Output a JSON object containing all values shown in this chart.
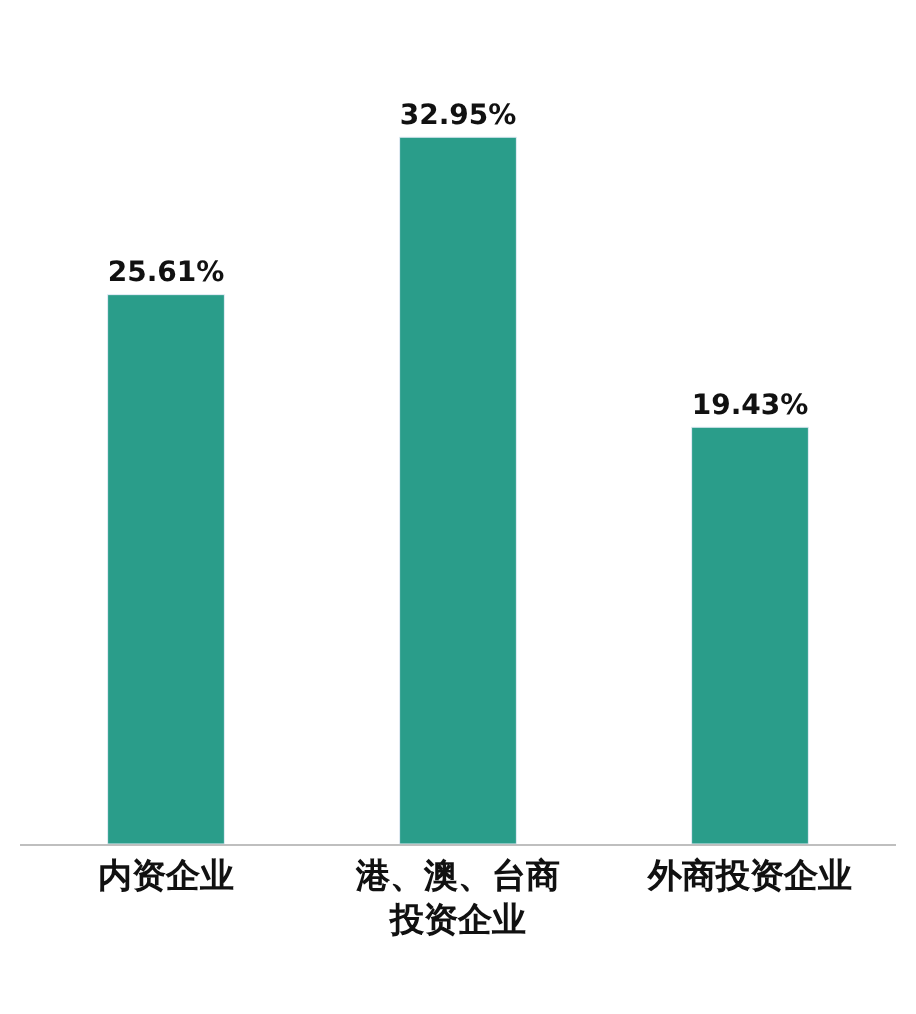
{
  "chart_data": {
    "type": "bar",
    "categories": [
      "内资企业",
      "港、澳、台商投资企业",
      "外商投资企业"
    ],
    "values": [
      25.61,
      32.95,
      19.43
    ],
    "value_labels": [
      "25.61%",
      "32.95%",
      "19.43%"
    ],
    "color": "#2a9d8a"
  }
}
